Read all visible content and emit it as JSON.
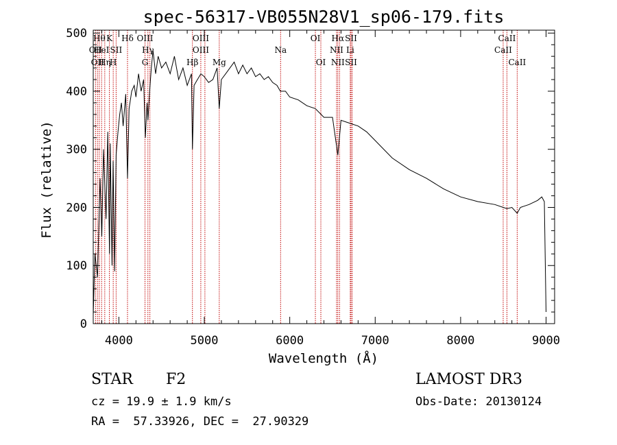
{
  "chart_data": {
    "type": "line",
    "title": "spec-56317-VB055N28V1_sp06-179.fits",
    "xlabel": "Wavelength (Å)",
    "ylabel": "Flux (relative)",
    "xlim": [
      3700,
      9100
    ],
    "ylim": [
      0,
      505
    ],
    "x_ticks": [
      "4000",
      "5000",
      "6000",
      "7000",
      "8000",
      "9000"
    ],
    "x_tick_values": [
      4000,
      5000,
      6000,
      7000,
      8000,
      9000
    ],
    "y_ticks": [
      "0",
      "100",
      "200",
      "300",
      "400",
      "500"
    ],
    "y_tick_values": [
      0,
      100,
      200,
      300,
      400,
      500
    ],
    "series": [
      {
        "name": "spectrum",
        "x": [
          3700,
          3720,
          3750,
          3780,
          3800,
          3820,
          3850,
          3870,
          3890,
          3900,
          3920,
          3933,
          3950,
          3968,
          3990,
          4010,
          4030,
          4050,
          4080,
          4101,
          4120,
          4150,
          4180,
          4200,
          4230,
          4260,
          4290,
          4310,
          4330,
          4340,
          4360,
          4380,
          4400,
          4430,
          4460,
          4500,
          4550,
          4600,
          4650,
          4700,
          4750,
          4800,
          4850,
          4861,
          4880,
          4920,
          4960,
          5000,
          5050,
          5100,
          5150,
          5175,
          5200,
          5250,
          5300,
          5350,
          5400,
          5450,
          5500,
          5550,
          5600,
          5650,
          5700,
          5750,
          5800,
          5850,
          5890,
          5950,
          6000,
          6100,
          6200,
          6300,
          6400,
          6500,
          6563,
          6600,
          6700,
          6800,
          6900,
          7000,
          7200,
          7400,
          7600,
          7800,
          8000,
          8200,
          8400,
          8498,
          8542,
          8600,
          8662,
          8700,
          8800,
          8900,
          8950,
          8980,
          9000
        ],
        "values": [
          15,
          120,
          80,
          250,
          150,
          300,
          180,
          330,
          120,
          310,
          100,
          280,
          90,
          290,
          330,
          360,
          380,
          340,
          395,
          250,
          370,
          400,
          410,
          390,
          430,
          400,
          420,
          320,
          380,
          350,
          400,
          440,
          470,
          430,
          460,
          440,
          450,
          430,
          460,
          420,
          440,
          410,
          430,
          300,
          410,
          420,
          430,
          425,
          415,
          420,
          440,
          370,
          420,
          430,
          440,
          450,
          430,
          445,
          430,
          440,
          425,
          430,
          420,
          425,
          415,
          410,
          400,
          400,
          390,
          385,
          375,
          370,
          355,
          355,
          290,
          350,
          345,
          340,
          330,
          315,
          285,
          265,
          250,
          232,
          218,
          210,
          205,
          200,
          198,
          200,
          190,
          200,
          205,
          212,
          218,
          210,
          20
        ]
      }
    ],
    "lines": [
      {
        "x": 3727,
        "labels": [
          "OII"
        ],
        "tier": [
          2
        ]
      },
      {
        "x": 3750,
        "labels": [
          "OII"
        ],
        "tier": [
          3
        ]
      },
      {
        "x": 3771,
        "labels": [
          "Hθ"
        ],
        "tier": [
          1
        ]
      },
      {
        "x": 3798,
        "labels": [
          "HeI"
        ],
        "tier": [
          2
        ]
      },
      {
        "x": 3835,
        "labels": [
          "Hη"
        ],
        "tier": [
          3
        ]
      },
      {
        "x": 3889,
        "labels": [
          "K"
        ],
        "tier": [
          1
        ]
      },
      {
        "x": 3934,
        "labels": [
          "H"
        ],
        "tier": [
          3
        ]
      },
      {
        "x": 3968,
        "labels": [
          "SII"
        ],
        "tier": [
          2
        ]
      },
      {
        "x": 4101,
        "labels": [
          "Hδ"
        ],
        "tier": [
          1
        ]
      },
      {
        "x": 4306,
        "labels": [
          "OIII",
          "G"
        ],
        "tier": [
          1,
          3
        ]
      },
      {
        "x": 4340,
        "labels": [
          "Hγ"
        ],
        "tier": [
          2
        ]
      },
      {
        "x": 4363,
        "labels": [],
        "tier": []
      },
      {
        "x": 4861,
        "labels": [
          "Hβ"
        ],
        "tier": [
          3
        ]
      },
      {
        "x": 4959,
        "labels": [
          "OIII",
          "OIII"
        ],
        "tier": [
          1,
          2
        ]
      },
      {
        "x": 5007,
        "labels": [],
        "tier": []
      },
      {
        "x": 5175,
        "labels": [
          "Mg"
        ],
        "tier": [
          3
        ]
      },
      {
        "x": 5893,
        "labels": [
          "Na"
        ],
        "tier": [
          2
        ]
      },
      {
        "x": 6300,
        "labels": [
          "OI"
        ],
        "tier": [
          1
        ]
      },
      {
        "x": 6364,
        "labels": [
          "OI"
        ],
        "tier": [
          3
        ]
      },
      {
        "x": 6548,
        "labels": [
          "NII"
        ],
        "tier": [
          2
        ]
      },
      {
        "x": 6563,
        "labels": [
          "Hα",
          "NII"
        ],
        "tier": [
          1,
          3
        ]
      },
      {
        "x": 6583,
        "labels": [],
        "tier": []
      },
      {
        "x": 6708,
        "labels": [
          "Li"
        ],
        "tier": [
          2
        ]
      },
      {
        "x": 6717,
        "labels": [
          "SII",
          "SII"
        ],
        "tier": [
          1,
          3
        ]
      },
      {
        "x": 6731,
        "labels": [],
        "tier": []
      },
      {
        "x": 8498,
        "labels": [
          "CaII"
        ],
        "tier": [
          2
        ]
      },
      {
        "x": 8542,
        "labels": [
          "CaII"
        ],
        "tier": [
          1
        ]
      },
      {
        "x": 8662,
        "labels": [
          "CaII"
        ],
        "tier": [
          3
        ]
      }
    ],
    "colors": {
      "spectrum": "#000000",
      "line_markers": "#c00000"
    }
  },
  "info": {
    "class": "STAR",
    "subclass": "F2",
    "survey": "LAMOST DR3",
    "cz": "cz = 19.9 ± 1.9 km/s",
    "obs_date": "Obs-Date: 20130124",
    "coords": "RA =  57.33926, DEC =  27.90329"
  }
}
